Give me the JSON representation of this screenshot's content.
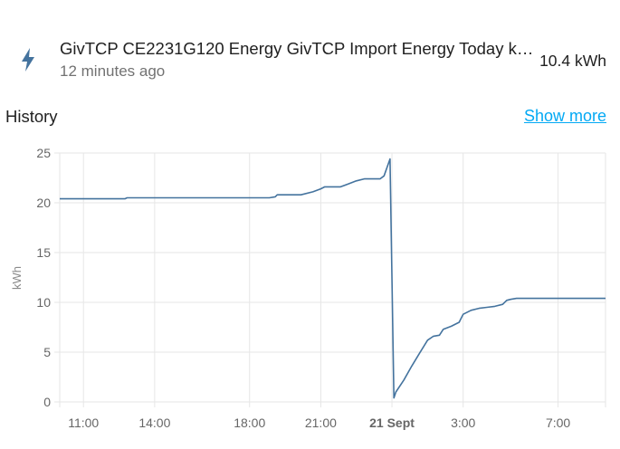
{
  "entity": {
    "name": "GivTCP CE2231G120 Energy GivTCP Import Energy Today k…",
    "last_changed": "12 minutes ago",
    "state": "10.4 kWh",
    "icon": "flash-icon",
    "icon_color": "#44739e"
  },
  "history": {
    "title": "History",
    "show_more": "Show more",
    "link_color": "#03a9f4"
  },
  "chart_data": {
    "type": "line",
    "title": "",
    "xlabel": "",
    "ylabel": "kWh",
    "ylim": [
      0,
      25
    ],
    "yticks": [
      "0",
      "5",
      "10",
      "15",
      "20",
      "25"
    ],
    "xticks": [
      "11:00",
      "14:00",
      "18:00",
      "21:00",
      "21 Sept",
      "3:00",
      "7:00"
    ],
    "grid": true,
    "line_color": "#44739e",
    "series": [
      {
        "values": [
          [
            "20 Sept 10:00",
            20.4
          ],
          [
            "20 Sept 12:45",
            20.4
          ],
          [
            "20 Sept 12:50",
            20.5
          ],
          [
            "20 Sept 18:50",
            20.5
          ],
          [
            "20 Sept 19:05",
            20.6
          ],
          [
            "20 Sept 19:10",
            20.8
          ],
          [
            "20 Sept 20:10",
            20.8
          ],
          [
            "20 Sept 20:40",
            21.1
          ],
          [
            "20 Sept 21:00",
            21.4
          ],
          [
            "20 Sept 21:10",
            21.6
          ],
          [
            "20 Sept 21:50",
            21.6
          ],
          [
            "20 Sept 22:10",
            21.9
          ],
          [
            "20 Sept 22:30",
            22.2
          ],
          [
            "20 Sept 22:50",
            22.4
          ],
          [
            "20 Sept 23:30",
            22.4
          ],
          [
            "20 Sept 23:40",
            22.7
          ],
          [
            "20 Sept 23:55",
            24.4
          ],
          [
            "21 Sept 00:05",
            0.4
          ],
          [
            "21 Sept 00:10",
            1.0
          ],
          [
            "21 Sept 00:30",
            2.2
          ],
          [
            "21 Sept 00:50",
            3.6
          ],
          [
            "21 Sept 01:10",
            4.9
          ],
          [
            "21 Sept 01:30",
            6.2
          ],
          [
            "21 Sept 01:45",
            6.6
          ],
          [
            "21 Sept 02:00",
            6.7
          ],
          [
            "21 Sept 02:10",
            7.3
          ],
          [
            "21 Sept 02:30",
            7.6
          ],
          [
            "21 Sept 02:50",
            8.0
          ],
          [
            "21 Sept 03:00",
            8.8
          ],
          [
            "21 Sept 03:20",
            9.2
          ],
          [
            "21 Sept 03:40",
            9.4
          ],
          [
            "21 Sept 04:00",
            9.5
          ],
          [
            "21 Sept 04:20",
            9.6
          ],
          [
            "21 Sept 04:40",
            9.8
          ],
          [
            "21 Sept 04:50",
            10.2
          ],
          [
            "21 Sept 05:00",
            10.3
          ],
          [
            "21 Sept 05:15",
            10.4
          ],
          [
            "21 Sept 09:00",
            10.4
          ]
        ]
      }
    ]
  }
}
